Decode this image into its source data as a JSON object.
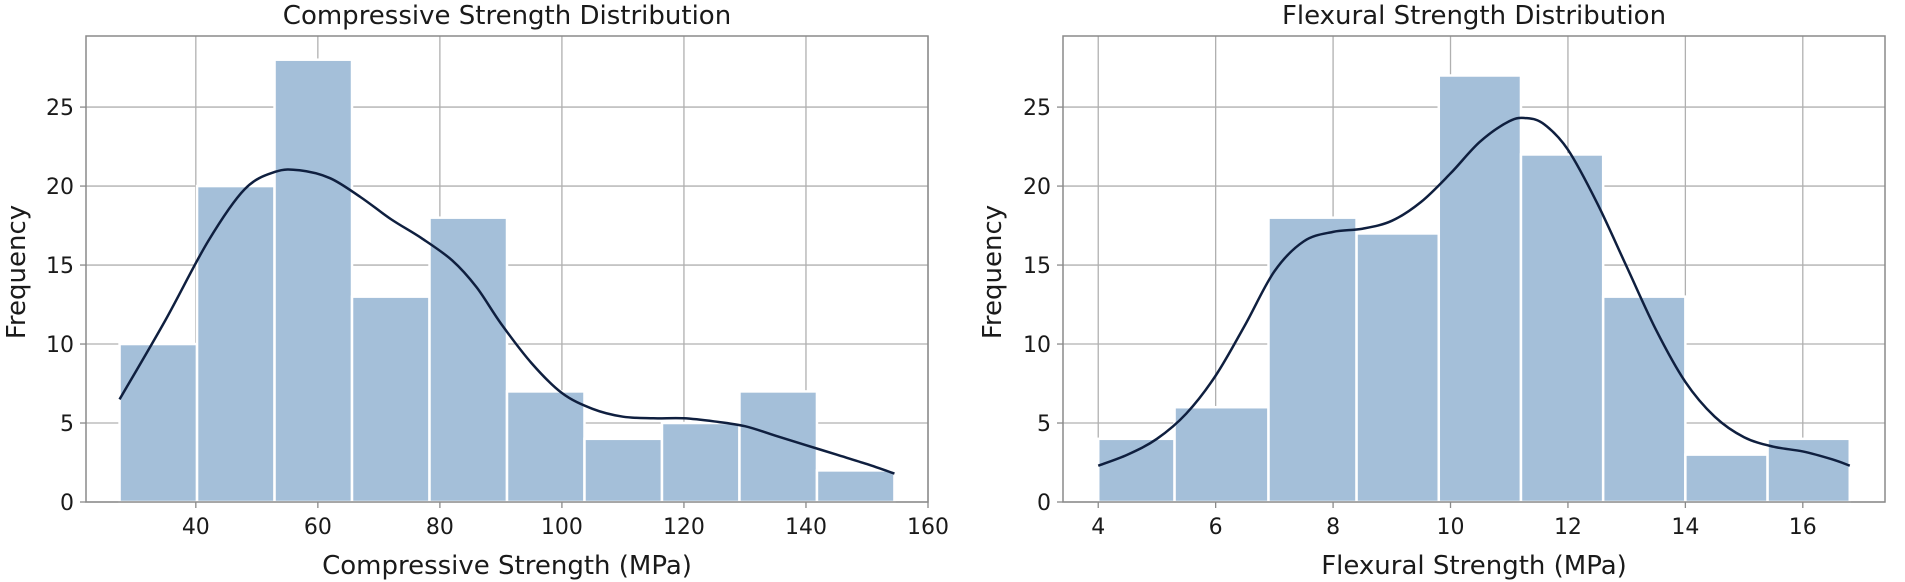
{
  "colors": {
    "bar": "#a4bfd9",
    "kde": "#0f1f3f",
    "grid": "#b0b0b0"
  },
  "chart_data": [
    {
      "type": "bar",
      "subtype": "histogram_with_kde",
      "title": "Compressive Strength Distribution",
      "xlabel": "Compressive Strength (MPa)",
      "ylabel": "Frequency",
      "xlim": [
        22,
        160
      ],
      "ylim": [
        0,
        29.5
      ],
      "xticks": [
        40,
        60,
        80,
        100,
        120,
        140,
        160
      ],
      "yticks": [
        0,
        5,
        10,
        15,
        20,
        25
      ],
      "grid": true,
      "bins": [
        {
          "x0": 27.5,
          "x1": 40.2,
          "value": 10
        },
        {
          "x0": 40.2,
          "x1": 52.9,
          "value": 20
        },
        {
          "x0": 52.9,
          "x1": 65.6,
          "value": 28
        },
        {
          "x0": 65.6,
          "x1": 78.3,
          "value": 13
        },
        {
          "x0": 78.3,
          "x1": 91.0,
          "value": 18
        },
        {
          "x0": 91.0,
          "x1": 103.7,
          "value": 7
        },
        {
          "x0": 103.7,
          "x1": 116.4,
          "value": 4
        },
        {
          "x0": 116.4,
          "x1": 129.1,
          "value": 5
        },
        {
          "x0": 129.1,
          "x1": 141.8,
          "value": 7
        },
        {
          "x0": 141.8,
          "x1": 154.5,
          "value": 2
        }
      ],
      "kde": {
        "x": [
          27.5,
          35,
          42,
          48,
          53,
          57,
          62,
          67,
          72,
          77,
          82,
          86,
          90,
          95,
          100,
          105,
          110,
          115,
          120,
          125,
          130,
          135,
          140,
          145,
          150,
          154.5
        ],
        "y": [
          6.5,
          11.5,
          16.5,
          19.8,
          20.9,
          21.0,
          20.5,
          19.3,
          17.9,
          16.7,
          15.3,
          13.6,
          11.3,
          8.8,
          6.9,
          5.9,
          5.4,
          5.3,
          5.3,
          5.1,
          4.8,
          4.2,
          3.6,
          3.0,
          2.4,
          1.8
        ]
      }
    },
    {
      "type": "bar",
      "subtype": "histogram_with_kde",
      "title": "Flexural Strength Distribution",
      "xlabel": "Flexural Strength (MPa)",
      "ylabel": "Frequency",
      "xlim": [
        3.4,
        17.4
      ],
      "ylim": [
        0,
        29.5
      ],
      "xticks": [
        4,
        6,
        8,
        10,
        12,
        14,
        16
      ],
      "yticks": [
        0,
        5,
        10,
        15,
        20,
        25
      ],
      "grid": true,
      "bins": [
        {
          "x0": 4.0,
          "x1": 5.3,
          "value": 4
        },
        {
          "x0": 5.3,
          "x1": 6.9,
          "value": 6
        },
        {
          "x0": 6.9,
          "x1": 8.4,
          "value": 18
        },
        {
          "x0": 8.4,
          "x1": 9.8,
          "value": 17
        },
        {
          "x0": 9.8,
          "x1": 11.2,
          "value": 27
        },
        {
          "x0": 11.2,
          "x1": 12.6,
          "value": 22
        },
        {
          "x0": 12.6,
          "x1": 14.0,
          "value": 13
        },
        {
          "x0": 14.0,
          "x1": 15.4,
          "value": 3
        },
        {
          "x0": 15.4,
          "x1": 16.8,
          "value": 4
        }
      ],
      "kde": {
        "x": [
          4.0,
          4.5,
          5.0,
          5.5,
          6.0,
          6.5,
          7.0,
          7.5,
          8.0,
          8.5,
          9.0,
          9.5,
          10.0,
          10.5,
          11.0,
          11.3,
          11.6,
          12.0,
          12.5,
          13.0,
          13.5,
          14.0,
          14.5,
          15.0,
          15.5,
          16.0,
          16.5,
          16.8
        ],
        "y": [
          2.3,
          3.0,
          4.0,
          5.6,
          8.0,
          11.2,
          14.6,
          16.5,
          17.1,
          17.3,
          17.8,
          19.0,
          20.8,
          22.8,
          24.1,
          24.3,
          23.9,
          22.3,
          18.9,
          14.9,
          10.9,
          7.6,
          5.4,
          4.1,
          3.5,
          3.2,
          2.7,
          2.3
        ]
      }
    }
  ]
}
